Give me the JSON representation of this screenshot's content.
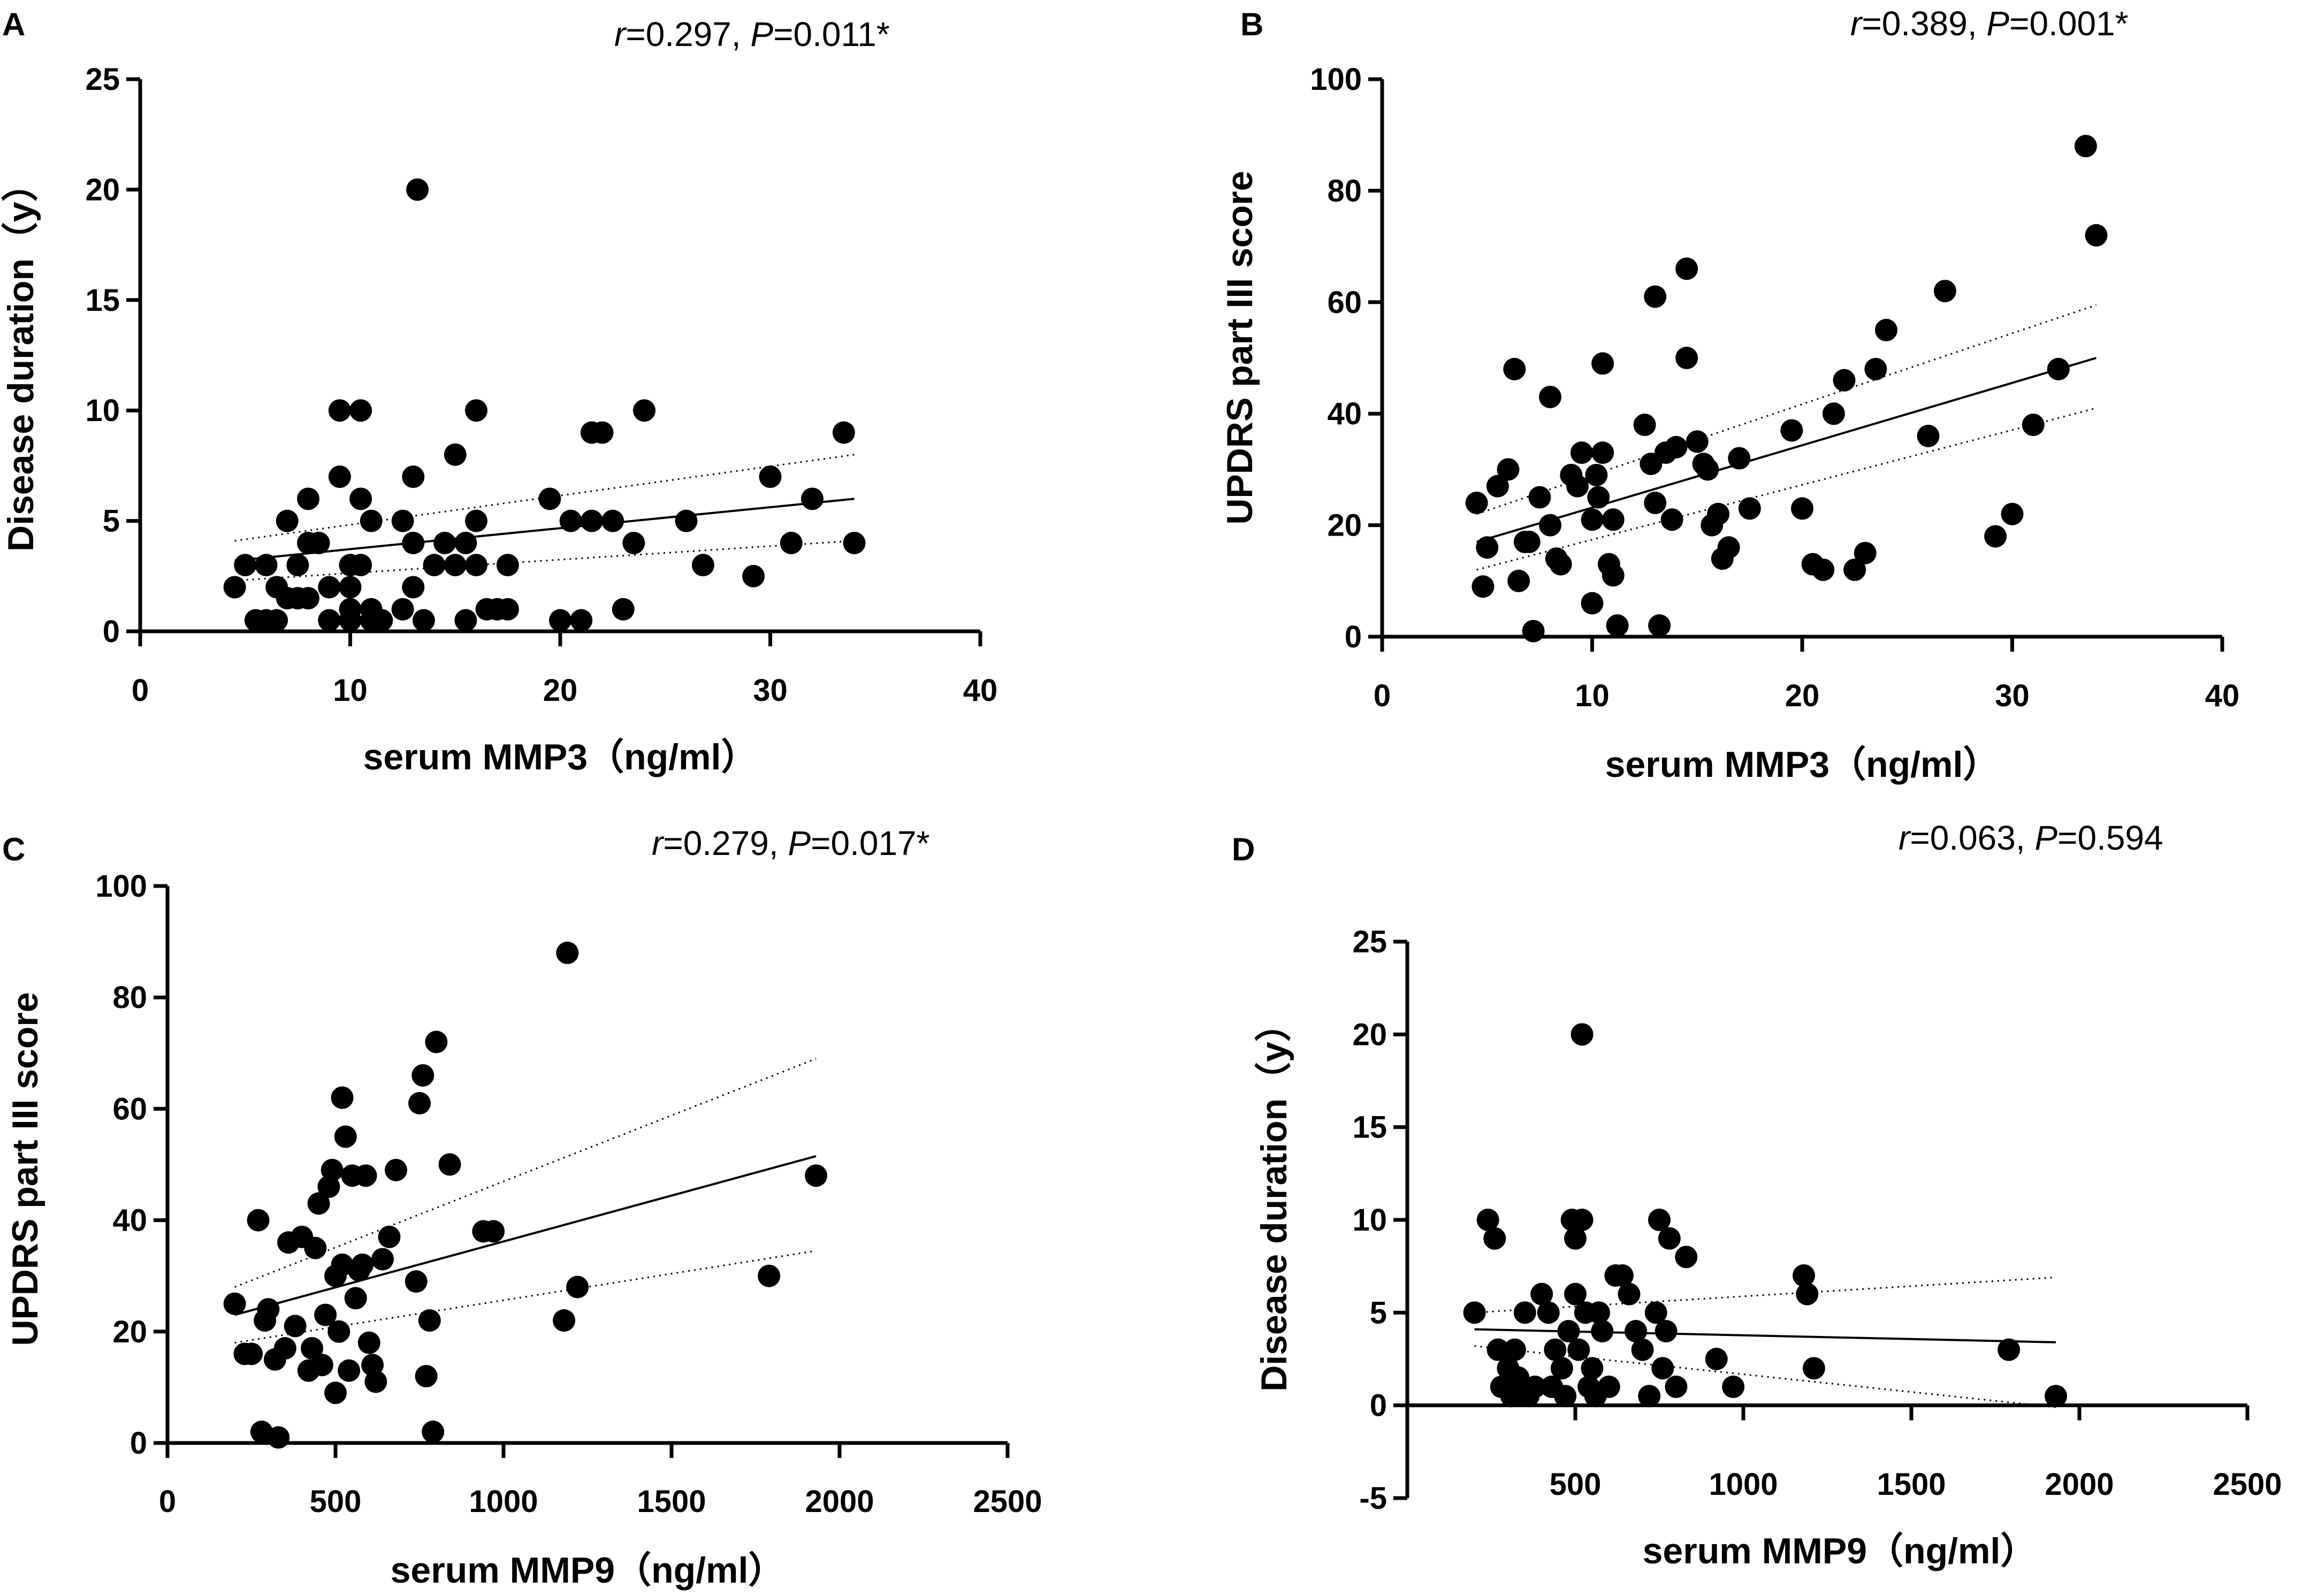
{
  "chart_data": [
    {
      "panel": "A",
      "type": "scatter",
      "stat_r_label": "r",
      "stat_r_value": "=0.297, ",
      "stat_p_label": "P",
      "stat_p_value": "=0.011*",
      "xlabel": "serum MMP3（ng/ml）",
      "ylabel": "Disease duration（y）",
      "xlim": [
        0,
        40
      ],
      "ylim": [
        0,
        25
      ],
      "xticks": [
        "0",
        "10",
        "20",
        "30",
        "40"
      ],
      "yticks": [
        "0",
        "5",
        "10",
        "15",
        "20",
        "25"
      ],
      "x": [
        4.5,
        5,
        5.5,
        6,
        6,
        6.5,
        6.5,
        7,
        7,
        7.5,
        7.5,
        8,
        8,
        8,
        8.5,
        9,
        9,
        9.5,
        9.5,
        10,
        10,
        10,
        10,
        10.5,
        10.5,
        10.5,
        11,
        11,
        11,
        11.5,
        12.5,
        12.5,
        13,
        13,
        13,
        13.2,
        13.5,
        14,
        14.5,
        15,
        15,
        15.5,
        15.5,
        16,
        16,
        16,
        16.5,
        17,
        17.5,
        17.5,
        19.5,
        20,
        20.5,
        21,
        21.5,
        21.5,
        22,
        22.5,
        23,
        23.5,
        24,
        26,
        26.8,
        29.2,
        30,
        31,
        32,
        33.5,
        34
      ],
      "y": [
        2,
        3,
        0.5,
        3,
        0.5,
        2,
        0.5,
        5,
        1.5,
        3,
        1.5,
        6,
        4,
        1.5,
        4,
        0.5,
        2,
        10,
        7,
        3,
        2,
        1,
        0.5,
        10,
        6,
        3,
        5,
        1,
        0.5,
        0.5,
        5,
        1,
        7,
        4,
        2,
        20,
        0.5,
        3,
        4,
        8,
        3,
        4,
        0.5,
        10,
        5,
        3,
        1,
        1,
        3,
        1,
        6,
        0.5,
        5,
        0.5,
        9,
        5,
        9,
        5,
        1,
        4,
        10,
        5,
        3,
        2.5,
        7,
        4,
        6,
        9,
        4
      ],
      "fit": {
        "x": [
          4.5,
          34
        ],
        "y": [
          3.2,
          6.0
        ]
      },
      "ci_upper": {
        "x": [
          4.5,
          34
        ],
        "y": [
          4.1,
          8.0
        ]
      },
      "ci_lower": {
        "x": [
          4.5,
          34
        ],
        "y": [
          2.3,
          4.1
        ]
      }
    },
    {
      "panel": "B",
      "type": "scatter",
      "stat_r_label": "r",
      "stat_r_value": "=0.389, ",
      "stat_p_label": "P",
      "stat_p_value": "=0.001*",
      "xlabel": "serum MMP3（ng/ml）",
      "ylabel": "UPDRS part III score",
      "xlim": [
        0,
        40
      ],
      "ylim": [
        0,
        100
      ],
      "xticks": [
        "0",
        "10",
        "20",
        "30",
        "40"
      ],
      "yticks": [
        "0",
        "20",
        "40",
        "60",
        "80",
        "100"
      ],
      "x": [
        4.5,
        4.8,
        5,
        5.5,
        6,
        6.3,
        6.5,
        6.8,
        7,
        7.2,
        7.5,
        8,
        8,
        8.3,
        8.5,
        9,
        9.3,
        9.5,
        10,
        10,
        10.2,
        10.3,
        10.5,
        10.5,
        10.8,
        11,
        11,
        11.2,
        12.5,
        12.8,
        13,
        13,
        13.2,
        13.5,
        13.8,
        14,
        14.5,
        14.5,
        15,
        15.3,
        15.5,
        15.7,
        16,
        16.2,
        16.5,
        17,
        17.5,
        19.5,
        20,
        20.5,
        21,
        21.5,
        22,
        22.5,
        23,
        23.5,
        24,
        26,
        26.8,
        29.2,
        30,
        31,
        32.2,
        33.5,
        34
      ],
      "y": [
        24,
        9,
        16,
        27,
        30,
        48,
        10,
        17,
        17,
        1,
        25,
        43,
        20,
        14,
        13,
        29,
        27,
        33,
        6,
        21,
        29,
        25,
        33,
        49,
        13,
        11,
        21,
        2,
        38,
        31,
        61,
        24,
        2,
        33,
        21,
        34,
        50,
        66,
        35,
        31,
        30,
        20,
        22,
        14,
        16,
        32,
        23,
        37,
        23,
        13,
        12,
        40,
        46,
        12,
        15,
        48,
        55,
        36,
        62,
        18,
        22,
        38,
        48,
        88,
        72
      ],
      "fit": {
        "x": [
          4.5,
          34
        ],
        "y": [
          17,
          50
        ]
      },
      "ci_upper": {
        "x": [
          4.5,
          34
        ],
        "y": [
          22,
          59.5
        ]
      },
      "ci_lower": {
        "x": [
          4.5,
          34
        ],
        "y": [
          12,
          41
        ]
      }
    },
    {
      "panel": "C",
      "type": "scatter",
      "stat_r_label": "r",
      "stat_r_value": "=0.279, ",
      "stat_p_label": "P",
      "stat_p_value": "=0.017*",
      "xlabel": "serum MMP9（ng/ml）",
      "ylabel": "UPDRS part III score",
      "xlim": [
        0,
        2500
      ],
      "ylim": [
        0,
        100
      ],
      "xticks": [
        "0",
        "500",
        "1000",
        "1500",
        "2000",
        "2500"
      ],
      "yticks": [
        "0",
        "20",
        "40",
        "60",
        "80",
        "100"
      ],
      "x": [
        200,
        230,
        250,
        270,
        280,
        290,
        300,
        320,
        330,
        350,
        360,
        380,
        400,
        420,
        430,
        440,
        450,
        460,
        470,
        480,
        490,
        500,
        500,
        510,
        520,
        520,
        530,
        540,
        550,
        560,
        570,
        580,
        590,
        600,
        610,
        620,
        640,
        660,
        680,
        740,
        750,
        760,
        770,
        780,
        790,
        800,
        840,
        940,
        970,
        1180,
        1190,
        1220,
        1790,
        1930
      ],
      "y": [
        25,
        16,
        16,
        40,
        2,
        22,
        24,
        15,
        1,
        17,
        36,
        21,
        37,
        13,
        17,
        35,
        43,
        14,
        23,
        46,
        49,
        9,
        30,
        20,
        32,
        62,
        55,
        13,
        48,
        26,
        31,
        32,
        48,
        18,
        14,
        11,
        33,
        37,
        49,
        29,
        61,
        66,
        12,
        22,
        2,
        72,
        50,
        38,
        38,
        22,
        88,
        28,
        30,
        48
      ],
      "fit": {
        "x": [
          200,
          1930
        ],
        "y": [
          23,
          51.5
        ]
      },
      "ci_upper": {
        "x": [
          200,
          1930
        ],
        "y": [
          28,
          69
        ]
      },
      "ci_lower": {
        "x": [
          200,
          1930
        ],
        "y": [
          18,
          34.5
        ]
      }
    },
    {
      "panel": "D",
      "type": "scatter",
      "stat_r_label": "r",
      "stat_r_value": "=0.063, ",
      "stat_p_label": "P",
      "stat_p_value": "=0.594",
      "xlabel": "serum MMP9（ng/ml）",
      "ylabel": "Disease duration（y）",
      "xlim": [
        0,
        2500
      ],
      "ylim": [
        -5,
        25
      ],
      "xticks": [
        "500",
        "1000",
        "1500",
        "2000",
        "2500"
      ],
      "yticks": [
        "-5",
        "0",
        "5",
        "10",
        "15",
        "20",
        "25"
      ],
      "x": [
        200,
        240,
        260,
        270,
        280,
        300,
        310,
        320,
        330,
        350,
        360,
        380,
        400,
        420,
        430,
        440,
        460,
        470,
        480,
        490,
        500,
        500,
        510,
        520,
        520,
        530,
        540,
        550,
        560,
        570,
        580,
        600,
        620,
        640,
        660,
        680,
        700,
        720,
        740,
        750,
        760,
        770,
        780,
        800,
        830,
        920,
        970,
        1180,
        1190,
        1210,
        1790,
        1930
      ],
      "y": [
        5,
        10,
        9,
        3,
        1,
        2,
        0.5,
        3,
        1.5,
        5,
        0.5,
        1,
        6,
        5,
        1,
        3,
        2,
        0.5,
        4,
        10,
        9,
        6,
        3,
        20,
        10,
        5,
        1,
        2,
        0.5,
        5,
        4,
        1,
        7,
        7,
        6,
        4,
        3,
        0.5,
        5,
        10,
        2,
        4,
        9,
        1,
        8,
        2.5,
        1,
        7,
        6,
        2,
        3,
        0.5
      ],
      "fit": {
        "x": [
          200,
          1930
        ],
        "y": [
          4.1,
          3.4
        ]
      },
      "ci_upper": {
        "x": [
          200,
          1930
        ],
        "y": [
          5.0,
          6.9
        ]
      },
      "ci_lower": {
        "x": [
          200,
          1930
        ],
        "y": [
          3.2,
          -0.1
        ]
      }
    }
  ]
}
